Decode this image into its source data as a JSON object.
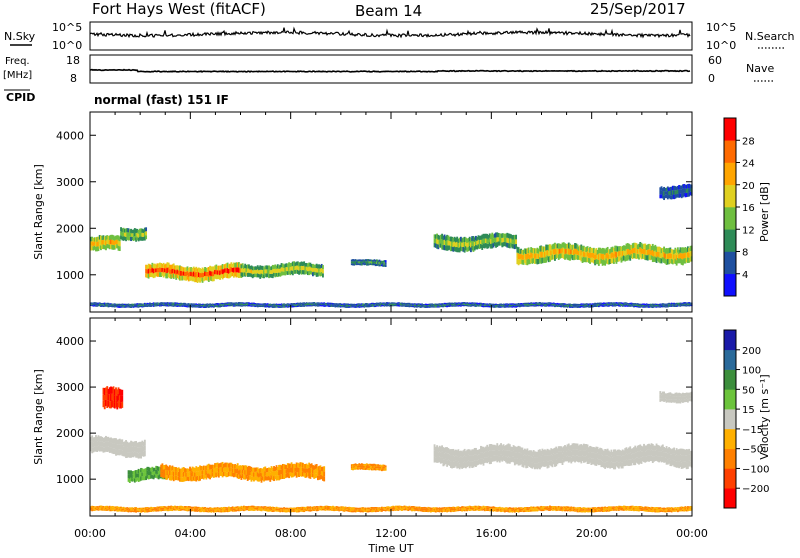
{
  "header": {
    "radar_title": "Fort Hays West (fitACF)",
    "beam": "Beam 14",
    "date": "25/Sep/2017"
  },
  "noise_panel": {
    "left_label": "N.Sky",
    "right_label": "N.Search",
    "left_ticks": [
      "10^5",
      "10^0"
    ],
    "right_ticks": [
      "10^5",
      "10^0"
    ]
  },
  "freq_panel": {
    "left_label_line1": "Freq.",
    "left_label_line2": "[MHz]",
    "right_label": "Nave",
    "left_ticks": [
      "18",
      "8"
    ],
    "right_ticks": [
      "60",
      "0"
    ]
  },
  "cpid": {
    "label": "CPID",
    "value": "normal (fast) 151 IF"
  },
  "x_axis": {
    "label": "Time UT",
    "ticks": [
      "00:00",
      "04:00",
      "08:00",
      "12:00",
      "16:00",
      "20:00",
      "00:00"
    ]
  },
  "colorbars": {
    "power": {
      "label": "Power [dB]",
      "ticks": [
        "28",
        "24",
        "20",
        "16",
        "12",
        "8",
        "4"
      ],
      "colors": [
        "#1010ff",
        "#1f50a0",
        "#2e8b57",
        "#6fbf40",
        "#e0d020",
        "#ffa500",
        "#ff6a00",
        "#ff0000"
      ]
    },
    "velocity": {
      "label": "Velocity [m s⁻¹]",
      "ticks": [
        "200",
        "100",
        "50",
        "15",
        "−15",
        "−50",
        "−100",
        "−200"
      ],
      "colors": [
        "#1a1aa8",
        "#2a6a9a",
        "#3c8e3c",
        "#6cc43c",
        "#c8c8c0",
        "#ffb000",
        "#ff8000",
        "#ff4000",
        "#ff0000"
      ]
    }
  },
  "chart_data": [
    {
      "type": "heatmap",
      "panel": "power",
      "ylabel": "Slant Range [km]",
      "xlabel": "Time UT",
      "xlim": [
        0,
        24
      ],
      "ylim": [
        200,
        4500
      ],
      "yticks": [
        1000,
        2000,
        3000,
        4000
      ],
      "colorbar_label": "Power [dB]",
      "bands": [
        {
          "t_start": 0.0,
          "t_end": 1.2,
          "range_center": 1650,
          "range_width": 350,
          "power_db": 22
        },
        {
          "t_start": 1.2,
          "t_end": 2.2,
          "range_center": 1900,
          "range_width": 300,
          "power_db": 16
        },
        {
          "t_start": 2.2,
          "t_end": 6.0,
          "range_center": 1050,
          "range_width": 350,
          "power_db": 28
        },
        {
          "t_start": 6.0,
          "t_end": 9.3,
          "range_center": 1100,
          "range_width": 300,
          "power_db": 18
        },
        {
          "t_start": 10.4,
          "t_end": 11.8,
          "range_center": 1250,
          "range_width": 150,
          "power_db": 10
        },
        {
          "t_start": 13.7,
          "t_end": 17.0,
          "range_center": 1700,
          "range_width": 350,
          "power_db": 16
        },
        {
          "t_start": 17.0,
          "t_end": 24.0,
          "range_center": 1450,
          "range_width": 400,
          "power_db": 22
        },
        {
          "t_start": 22.7,
          "t_end": 24.0,
          "range_center": 2800,
          "range_width": 300,
          "power_db": 8
        },
        {
          "t_start": 0.0,
          "t_end": 24.0,
          "range_center": 350,
          "range_width": 100,
          "power_db": 8
        }
      ]
    },
    {
      "type": "heatmap",
      "panel": "velocity",
      "ylabel": "Slant Range [km]",
      "xlabel": "Time UT",
      "xlim": [
        0,
        24
      ],
      "ylim": [
        200,
        4500
      ],
      "yticks": [
        1000,
        2000,
        3000,
        4000
      ],
      "colorbar_label": "Velocity [m s⁻¹]",
      "bands": [
        {
          "t_start": 0.5,
          "t_end": 1.3,
          "range_center": 2700,
          "range_width": 500,
          "velocity": -200
        },
        {
          "t_start": 0.0,
          "t_end": 2.2,
          "range_center": 1700,
          "range_width": 400,
          "velocity": 0
        },
        {
          "t_start": 1.5,
          "t_end": 3.0,
          "range_center": 1100,
          "range_width": 300,
          "velocity": 50
        },
        {
          "t_start": 2.8,
          "t_end": 9.3,
          "range_center": 1150,
          "range_width": 350,
          "velocity": -50
        },
        {
          "t_start": 10.4,
          "t_end": 11.8,
          "range_center": 1250,
          "range_width": 150,
          "velocity": -50
        },
        {
          "t_start": 13.7,
          "t_end": 24.0,
          "range_center": 1500,
          "range_width": 450,
          "velocity": 0
        },
        {
          "t_start": 22.7,
          "t_end": 24.0,
          "range_center": 2800,
          "range_width": 250,
          "velocity": 0
        },
        {
          "t_start": 0.0,
          "t_end": 24.0,
          "range_center": 350,
          "range_width": 120,
          "velocity": -50
        }
      ]
    }
  ]
}
